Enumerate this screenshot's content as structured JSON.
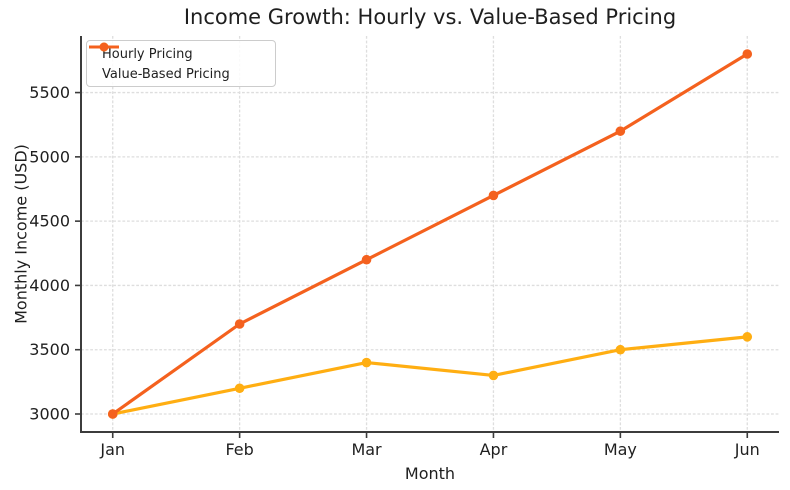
{
  "chart_data": {
    "type": "line",
    "title": "Income Growth: Hourly vs. Value-Based Pricing",
    "xlabel": "Month",
    "ylabel": "Monthly Income (USD)",
    "categories": [
      "Jan",
      "Feb",
      "Mar",
      "Apr",
      "May",
      "Jun"
    ],
    "series": [
      {
        "name": "Hourly Pricing",
        "color": "#FFAE12",
        "values": [
          3000,
          3200,
          3400,
          3300,
          3500,
          3600
        ]
      },
      {
        "name": "Value-Based Pricing",
        "color": "#F4611E",
        "values": [
          3000,
          3700,
          4200,
          4700,
          5200,
          5800
        ]
      }
    ],
    "yticks": [
      3000,
      3500,
      4000,
      4500,
      5000,
      5500
    ],
    "ylim": [
      2860,
      5940
    ],
    "grid": true,
    "legend_position": "upper-left",
    "marker": "circle",
    "style": {
      "background": "#ffffff",
      "grid_color": "#dedede",
      "spine_color": "#3c3c3c",
      "text_color": "#1f1f1f"
    }
  }
}
